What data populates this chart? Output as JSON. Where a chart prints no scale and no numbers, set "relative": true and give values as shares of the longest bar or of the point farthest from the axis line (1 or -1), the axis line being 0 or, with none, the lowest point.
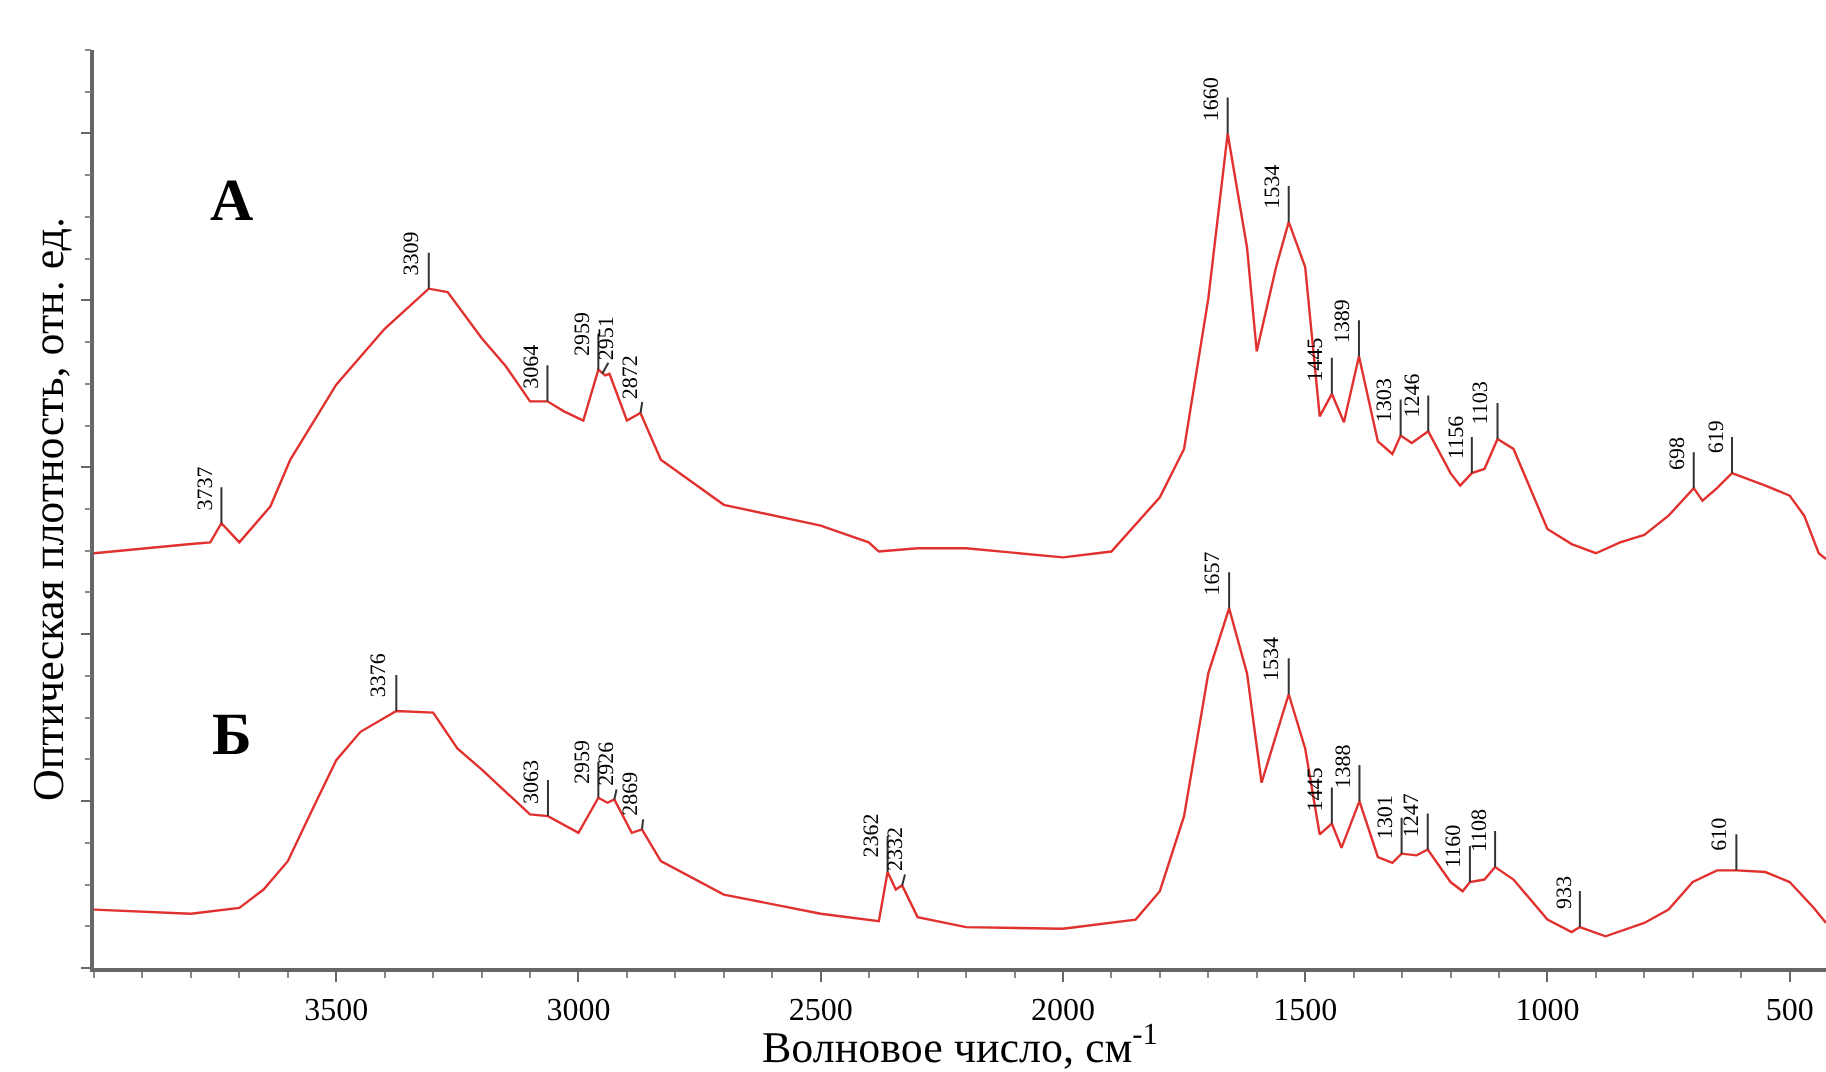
{
  "chart_data": {
    "type": "line",
    "relative": true,
    "xlabel": "Волновое число, см$^{-1}$",
    "ylabel": "Оптическая плотность, отн. ед.",
    "xlim": [
      4000,
      425
    ],
    "xticks": [
      3500,
      3000,
      2500,
      2000,
      1500,
      1000,
      500
    ],
    "legend": false,
    "marker": "none",
    "line_style": "solid",
    "tick_labels": "x",
    "series": [
      {
        "name": "А",
        "color": "#e0312f",
        "x": [
          4000,
          3800,
          3760,
          3737,
          3700,
          3636,
          3595,
          3500,
          3400,
          3309,
          3270,
          3200,
          3150,
          3100,
          3064,
          3030,
          2990,
          2959,
          2945,
          2936,
          2900,
          2872,
          2830,
          2700,
          2500,
          2401,
          2380,
          2300,
          2200,
          2000,
          1900,
          1800,
          1750,
          1700,
          1660,
          1620,
          1600,
          1560,
          1534,
          1500,
          1470,
          1445,
          1420,
          1389,
          1350,
          1320,
          1303,
          1280,
          1246,
          1200,
          1180,
          1156,
          1130,
          1103,
          1070,
          1000,
          950,
          900,
          850,
          800,
          750,
          698,
          680,
          650,
          619,
          550,
          500,
          470,
          440,
          425
        ],
        "values": [
          0.497,
          0.508,
          0.51,
          0.533,
          0.51,
          0.553,
          0.609,
          0.699,
          0.766,
          0.814,
          0.81,
          0.755,
          0.721,
          0.679,
          0.679,
          0.667,
          0.656,
          0.717,
          0.71,
          0.712,
          0.656,
          0.665,
          0.609,
          0.555,
          0.53,
          0.51,
          0.499,
          0.503,
          0.503,
          0.492,
          0.499,
          0.564,
          0.622,
          0.802,
          1.0,
          0.863,
          0.739,
          0.84,
          0.894,
          0.84,
          0.661,
          0.688,
          0.654,
          0.733,
          0.631,
          0.616,
          0.638,
          0.629,
          0.643,
          0.593,
          0.578,
          0.593,
          0.598,
          0.634,
          0.622,
          0.526,
          0.508,
          0.497,
          0.51,
          0.519,
          0.542,
          0.575,
          0.56,
          0.575,
          0.593,
          0.578,
          0.566,
          0.542,
          0.497,
          0.49
        ]
      },
      {
        "name": "Б",
        "color": "#e0312f",
        "x": [
          4000,
          3800,
          3700,
          3650,
          3600,
          3550,
          3500,
          3450,
          3376,
          3300,
          3250,
          3200,
          3100,
          3063,
          3000,
          2959,
          2940,
          2926,
          2890,
          2869,
          2830,
          2700,
          2500,
          2380,
          2362,
          2345,
          2332,
          2300,
          2200,
          2000,
          1850,
          1800,
          1750,
          1700,
          1657,
          1620,
          1590,
          1560,
          1534,
          1500,
          1470,
          1445,
          1425,
          1388,
          1350,
          1320,
          1301,
          1270,
          1247,
          1200,
          1175,
          1160,
          1130,
          1108,
          1070,
          1000,
          950,
          933,
          880,
          800,
          750,
          700,
          650,
          610,
          550,
          500,
          450,
          425
        ],
        "values": [
          0.07,
          0.065,
          0.072,
          0.094,
          0.128,
          0.189,
          0.249,
          0.283,
          0.308,
          0.306,
          0.263,
          0.238,
          0.184,
          0.182,
          0.162,
          0.204,
          0.198,
          0.202,
          0.162,
          0.166,
          0.128,
          0.088,
          0.065,
          0.056,
          0.115,
          0.094,
          0.099,
          0.061,
          0.049,
          0.047,
          0.058,
          0.092,
          0.182,
          0.353,
          0.431,
          0.353,
          0.222,
          0.279,
          0.328,
          0.263,
          0.16,
          0.173,
          0.144,
          0.2,
          0.133,
          0.126,
          0.137,
          0.135,
          0.142,
          0.103,
          0.092,
          0.103,
          0.106,
          0.121,
          0.106,
          0.058,
          0.043,
          0.049,
          0.038,
          0.054,
          0.07,
          0.103,
          0.117,
          0.117,
          0.115,
          0.103,
          0.072,
          0.054
        ]
      }
    ],
    "annotations": [
      {
        "text": "3737",
        "x": 3737,
        "y": 0.533
      },
      {
        "text": "3309",
        "x": 3309,
        "y": 0.814
      },
      {
        "text": "3064",
        "x": 3064,
        "y": 0.679
      },
      {
        "text": "2959",
        "x": 2959,
        "y": 0.717
      },
      {
        "text": "2951",
        "x": 2951,
        "y": 0.712
      },
      {
        "text": "2872",
        "x": 2872,
        "y": 0.665
      },
      {
        "text": "1660",
        "x": 1660,
        "y": 1.0
      },
      {
        "text": "1534",
        "x": 1534,
        "y": 0.894
      },
      {
        "text": "1445",
        "x": 1445,
        "y": 0.688
      },
      {
        "text": "1389",
        "x": 1389,
        "y": 0.733
      },
      {
        "text": "1303",
        "x": 1303,
        "y": 0.638
      },
      {
        "text": "1246",
        "x": 1246,
        "y": 0.643
      },
      {
        "text": "1156",
        "x": 1156,
        "y": 0.593
      },
      {
        "text": "1103",
        "x": 1103,
        "y": 0.634
      },
      {
        "text": "698",
        "x": 698,
        "y": 0.575
      },
      {
        "text": "619",
        "x": 619,
        "y": 0.593
      },
      {
        "text": "3376",
        "x": 3376,
        "y": 0.308
      },
      {
        "text": "3063",
        "x": 3063,
        "y": 0.182
      },
      {
        "text": "2959",
        "x": 2959,
        "y": 0.204
      },
      {
        "text": "2926",
        "x": 2926,
        "y": 0.202
      },
      {
        "text": "2869",
        "x": 2869,
        "y": 0.166
      },
      {
        "text": "2362",
        "x": 2362,
        "y": 0.115
      },
      {
        "text": "2332",
        "x": 2332,
        "y": 0.099
      },
      {
        "text": "1657",
        "x": 1657,
        "y": 0.431
      },
      {
        "text": "1534",
        "x": 1534,
        "y": 0.328
      },
      {
        "text": "1445",
        "x": 1445,
        "y": 0.173
      },
      {
        "text": "1388",
        "x": 1388,
        "y": 0.2
      },
      {
        "text": "1301",
        "x": 1301,
        "y": 0.137
      },
      {
        "text": "1247",
        "x": 1247,
        "y": 0.142
      },
      {
        "text": "1160",
        "x": 1160,
        "y": 0.103
      },
      {
        "text": "1108",
        "x": 1108,
        "y": 0.121
      },
      {
        "text": "933",
        "x": 933,
        "y": 0.049
      },
      {
        "text": "610",
        "x": 610,
        "y": 0.117
      }
    ]
  }
}
